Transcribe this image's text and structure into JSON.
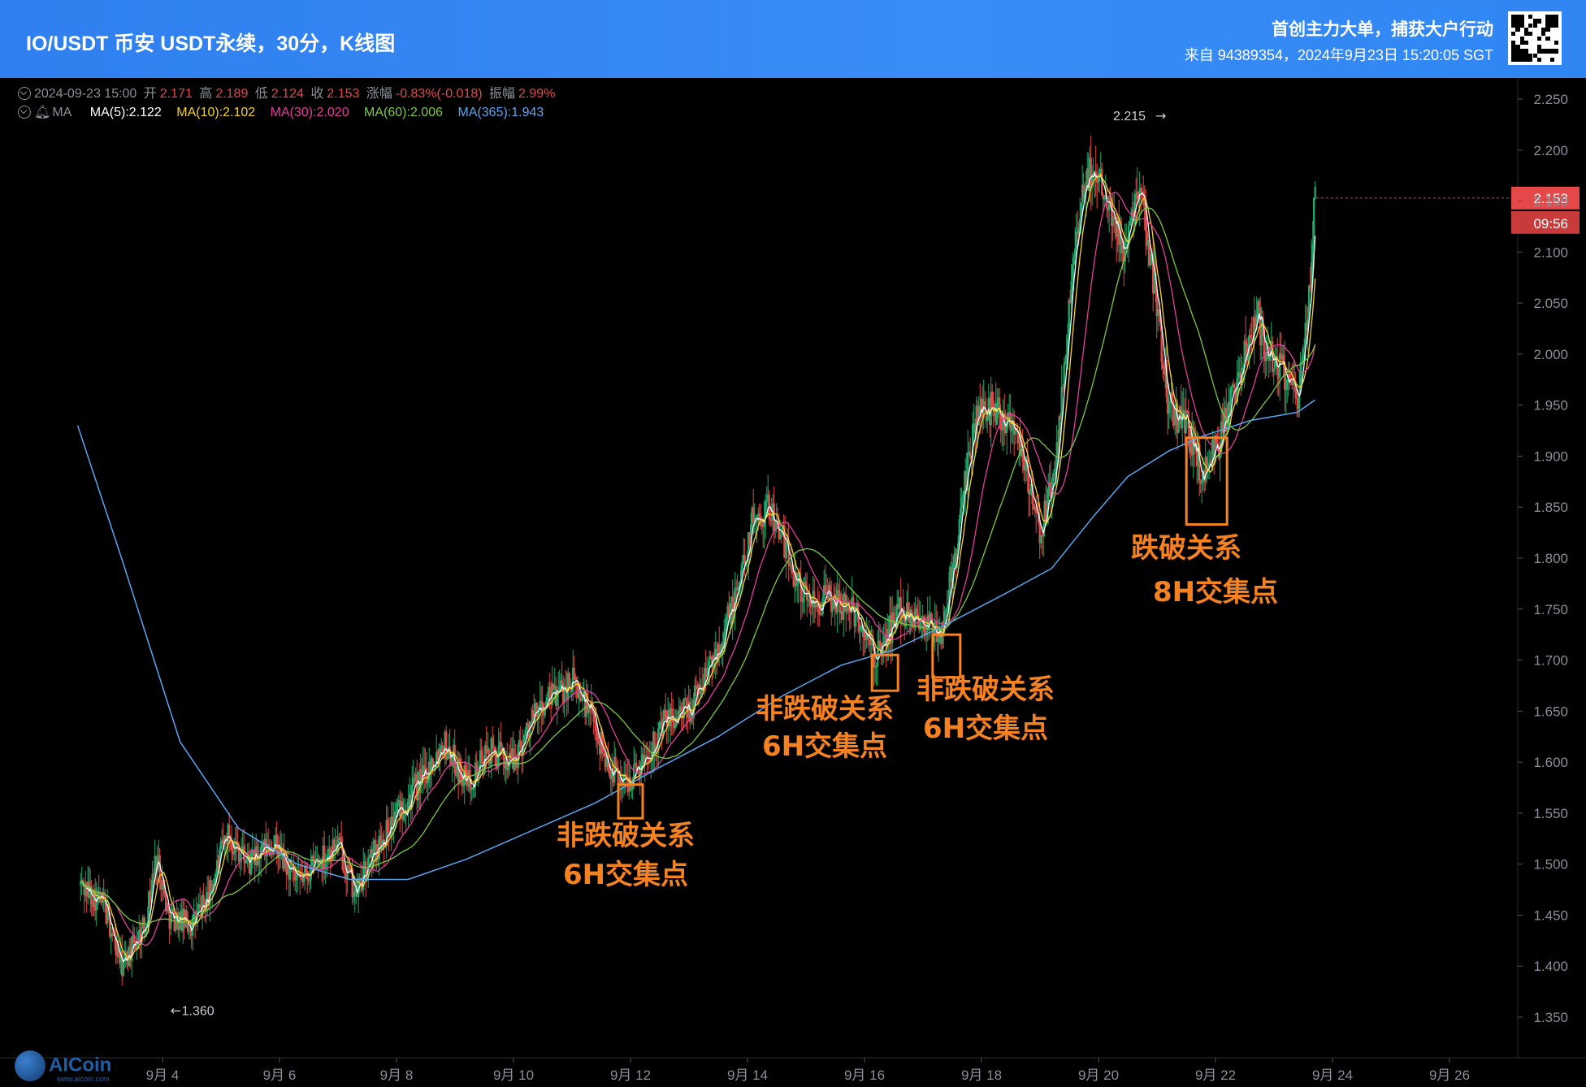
{
  "header": {
    "title": "IO/USDT 币安 USDT永续，30分，K线图",
    "slogan": "首创主力大单，捕获大户行动",
    "source": "来自 94389354，2024年9月23日 15:20:05 SGT"
  },
  "ohlc": {
    "date": "2024-09-23 15:00",
    "open_label": "开",
    "open": "2.171",
    "high_label": "高",
    "high": "2.189",
    "low_label": "低",
    "low": "2.124",
    "close_label": "收",
    "close": "2.153",
    "change_label": "涨幅",
    "change": "-0.83%(-0.018)",
    "amp_label": "振幅",
    "amp": "2.99%"
  },
  "ma_row": {
    "prefix": "MA",
    "items": [
      {
        "label": "MA(5):2.122",
        "color": "#ffffff"
      },
      {
        "label": "MA(10):2.102",
        "color": "#f5d327"
      },
      {
        "label": "MA(30):2.020",
        "color": "#e0409a"
      },
      {
        "label": "MA(60):2.006",
        "color": "#7cc944"
      },
      {
        "label": "MA(365):1.943",
        "color": "#5aa6ef"
      }
    ]
  },
  "price_tag": {
    "price": "2.153",
    "countdown": "09:56"
  },
  "extremes": {
    "high": "2.215",
    "low": "1.360"
  },
  "annotations": [
    {
      "line1": "非跌破关系",
      "line2": "6H交集点"
    },
    {
      "line1": "非跌破关系",
      "line2": "6H交集点"
    },
    {
      "line1": "非跌破关系",
      "line2": "6H交集点"
    },
    {
      "line1": "跌破关系",
      "line2": "8H交集点"
    }
  ],
  "logo": {
    "name": "AICoin",
    "url": "www.aicoin.com"
  },
  "colors": {
    "up": "#1ea86a",
    "down": "#e54848",
    "annotation": "#f58220",
    "header": "#3a8cf6",
    "ma365": "#5aa6ef"
  },
  "chart_data": {
    "type": "candlestick",
    "y_axis": {
      "ticks": [
        "2.250",
        "2.200",
        "2.150",
        "2.100",
        "2.050",
        "2.000",
        "1.950",
        "1.900",
        "1.850",
        "1.800",
        "1.750",
        "1.700",
        "1.650",
        "1.600",
        "1.550",
        "1.500",
        "1.450",
        "1.400",
        "1.350"
      ],
      "range": [
        1.32,
        2.26
      ],
      "position": "right"
    },
    "x_axis": {
      "ticks": [
        "9月 4",
        "9月 6",
        "9月 8",
        "9月 10",
        "9月 12",
        "9月 14",
        "9月 16",
        "9月 18",
        "9月 20",
        "9月 22",
        "9月 24",
        "9月 26"
      ]
    },
    "price_path": [
      {
        "d": 2.6,
        "p": 1.48
      },
      {
        "d": 3.0,
        "p": 1.46
      },
      {
        "d": 3.3,
        "p": 1.4
      },
      {
        "d": 3.7,
        "p": 1.44
      },
      {
        "d": 3.9,
        "p": 1.51
      },
      {
        "d": 4.1,
        "p": 1.45
      },
      {
        "d": 4.5,
        "p": 1.44
      },
      {
        "d": 4.8,
        "p": 1.47
      },
      {
        "d": 5.1,
        "p": 1.53
      },
      {
        "d": 5.5,
        "p": 1.5
      },
      {
        "d": 5.9,
        "p": 1.52
      },
      {
        "d": 6.3,
        "p": 1.48
      },
      {
        "d": 6.6,
        "p": 1.5
      },
      {
        "d": 7.0,
        "p": 1.52
      },
      {
        "d": 7.3,
        "p": 1.47
      },
      {
        "d": 7.6,
        "p": 1.51
      },
      {
        "d": 8.0,
        "p": 1.55
      },
      {
        "d": 8.4,
        "p": 1.58
      },
      {
        "d": 8.8,
        "p": 1.62
      },
      {
        "d": 9.2,
        "p": 1.58
      },
      {
        "d": 9.6,
        "p": 1.61
      },
      {
        "d": 10.0,
        "p": 1.6
      },
      {
        "d": 10.3,
        "p": 1.64
      },
      {
        "d": 10.6,
        "p": 1.66
      },
      {
        "d": 11.0,
        "p": 1.68
      },
      {
        "d": 11.3,
        "p": 1.65
      },
      {
        "d": 11.6,
        "p": 1.6
      },
      {
        "d": 11.9,
        "p": 1.58
      },
      {
        "d": 12.2,
        "p": 1.6
      },
      {
        "d": 12.6,
        "p": 1.64
      },
      {
        "d": 13.0,
        "p": 1.65
      },
      {
        "d": 13.4,
        "p": 1.7
      },
      {
        "d": 13.8,
        "p": 1.76
      },
      {
        "d": 14.1,
        "p": 1.84
      },
      {
        "d": 14.4,
        "p": 1.85
      },
      {
        "d": 14.7,
        "p": 1.8
      },
      {
        "d": 15.0,
        "p": 1.76
      },
      {
        "d": 15.4,
        "p": 1.76
      },
      {
        "d": 15.8,
        "p": 1.75
      },
      {
        "d": 16.2,
        "p": 1.7
      },
      {
        "d": 16.6,
        "p": 1.75
      },
      {
        "d": 17.0,
        "p": 1.74
      },
      {
        "d": 17.3,
        "p": 1.72
      },
      {
        "d": 17.6,
        "p": 1.82
      },
      {
        "d": 17.9,
        "p": 1.94
      },
      {
        "d": 18.2,
        "p": 1.95
      },
      {
        "d": 18.6,
        "p": 1.93
      },
      {
        "d": 19.0,
        "p": 1.82
      },
      {
        "d": 19.3,
        "p": 1.9
      },
      {
        "d": 19.5,
        "p": 2.05
      },
      {
        "d": 19.8,
        "p": 2.18
      },
      {
        "d": 20.1,
        "p": 2.17
      },
      {
        "d": 20.4,
        "p": 2.1
      },
      {
        "d": 20.7,
        "p": 2.17
      },
      {
        "d": 21.0,
        "p": 2.05
      },
      {
        "d": 21.2,
        "p": 1.95
      },
      {
        "d": 21.5,
        "p": 1.93
      },
      {
        "d": 21.8,
        "p": 1.88
      },
      {
        "d": 22.1,
        "p": 1.92
      },
      {
        "d": 22.4,
        "p": 1.98
      },
      {
        "d": 22.7,
        "p": 2.04
      },
      {
        "d": 22.9,
        "p": 2.0
      },
      {
        "d": 23.2,
        "p": 1.98
      },
      {
        "d": 23.4,
        "p": 1.95
      },
      {
        "d": 23.6,
        "p": 2.05
      },
      {
        "d": 23.7,
        "p": 2.153
      }
    ],
    "extreme_labels": {
      "high": 2.215,
      "low": 1.36
    }
  }
}
